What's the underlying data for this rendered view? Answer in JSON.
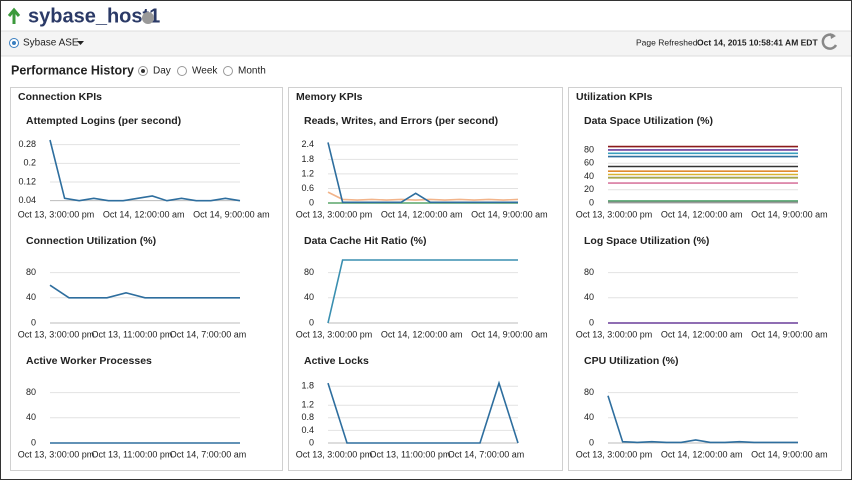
{
  "header": {
    "title": "sybase_host1"
  },
  "toolbar": {
    "target": "Sybase ASE",
    "refreshed_label": "Page Refreshed",
    "refreshed_time": "Oct 14, 2015 10:58:41 AM EDT"
  },
  "performance_history": {
    "title": "Performance History",
    "options": [
      "Day",
      "Week",
      "Month"
    ],
    "selected": 0
  },
  "panels": [
    {
      "title": "Connection KPIs"
    },
    {
      "title": "Memory KPIs"
    },
    {
      "title": "Utilization KPIs"
    }
  ],
  "chart_data": [
    {
      "type": "line",
      "title": "Attempted Logins (per second)",
      "categories": [
        "Oct 13, 3:00:00 pm",
        null,
        null,
        null,
        null,
        null,
        "Oct 14, 12:00:00 am",
        null,
        null,
        null,
        null,
        null,
        "Oct 14, 9:00:00 am",
        null
      ],
      "ylim": [
        0.03,
        0.3
      ],
      "yticks": [
        0.04,
        0.12,
        0.2,
        0.28
      ],
      "grid": true,
      "series": [
        {
          "color": "#2e6e9e",
          "values": [
            0.3,
            0.05,
            0.04,
            0.05,
            0.04,
            0.04,
            0.05,
            0.06,
            0.04,
            0.05,
            0.04,
            0.04,
            0.05,
            0.04
          ]
        }
      ]
    },
    {
      "type": "line",
      "title": "Connection Utilization (%)",
      "categories": [
        "Oct 13, 3:00:00 pm",
        null,
        null,
        null,
        "Oct 13, 11:00:00 pm",
        null,
        null,
        null,
        "Oct 14, 7:00:00 am",
        null,
        null
      ],
      "ylim": [
        0,
        100
      ],
      "yticks": [
        0,
        40,
        80
      ],
      "grid": true,
      "series": [
        {
          "color": "#2e6e9e",
          "values": [
            60,
            40,
            40,
            40,
            48,
            40,
            40,
            40,
            40,
            40,
            40
          ]
        }
      ]
    },
    {
      "type": "line",
      "title": "Active Worker Processes",
      "categories": [
        "Oct 13, 3:00:00 pm",
        null,
        null,
        null,
        "Oct 13, 11:00:00 pm",
        null,
        null,
        null,
        "Oct 14, 7:00:00 am",
        null,
        null
      ],
      "ylim": [
        0,
        100
      ],
      "yticks": [
        0,
        40,
        80
      ],
      "grid": true,
      "series": [
        {
          "color": "#2e6e9e",
          "values": [
            0,
            0,
            0,
            0,
            0,
            0,
            0,
            0,
            0,
            0,
            0
          ]
        }
      ]
    },
    {
      "type": "line",
      "title": "Reads, Writes, and Errors (per second)",
      "categories": [
        "Oct 13, 3:00:00 pm",
        null,
        null,
        null,
        null,
        null,
        "Oct 14, 12:00:00 am",
        null,
        null,
        null,
        null,
        null,
        "Oct 14, 9:00:00 am",
        null
      ],
      "ylim": [
        0,
        2.6
      ],
      "yticks": [
        0,
        0.6,
        1.2,
        1.8,
        2.4
      ],
      "grid": true,
      "series": [
        {
          "color": "#f2b48a",
          "values": [
            0.45,
            0.15,
            0.12,
            0.15,
            0.12,
            0.15,
            0.12,
            0.15,
            0.12,
            0.15,
            0.12,
            0.15,
            0.12,
            0.15
          ]
        },
        {
          "color": "#5aa56a",
          "values": [
            0,
            0,
            0,
            0,
            0,
            0,
            0,
            0,
            0,
            0,
            0,
            0,
            0,
            0
          ]
        },
        {
          "color": "#2e6e9e",
          "values": [
            2.5,
            0.03,
            0.03,
            0.03,
            0.03,
            0.03,
            0.4,
            0.03,
            0.03,
            0.03,
            0.03,
            0.03,
            0.03,
            0.03
          ]
        }
      ]
    },
    {
      "type": "line",
      "title": "Data Cache Hit Ratio (%)",
      "categories": [
        "Oct 13, 3:00:00 pm",
        null,
        null,
        null,
        null,
        null,
        "Oct 14, 12:00:00 am",
        null,
        null,
        null,
        null,
        null,
        "Oct 14, 9:00:00 am",
        null
      ],
      "ylim": [
        0,
        100
      ],
      "yticks": [
        0,
        40,
        80
      ],
      "grid": true,
      "series": [
        {
          "color": "#3a8fb0",
          "values": [
            0,
            100,
            100,
            100,
            100,
            100,
            100,
            100,
            100,
            100,
            100,
            100,
            100,
            100
          ]
        }
      ]
    },
    {
      "type": "line",
      "title": "Active Locks",
      "categories": [
        "Oct 13, 3:00:00 pm",
        null,
        null,
        null,
        "Oct 13, 11:00:00 pm",
        null,
        null,
        null,
        "Oct 14, 7:00:00 am",
        null,
        null
      ],
      "ylim": [
        0,
        2
      ],
      "yticks": [
        0,
        0.4,
        0.8,
        1.2,
        1.8
      ],
      "grid": true,
      "series": [
        {
          "color": "#2e6e9e",
          "values": [
            1.9,
            0,
            0,
            0,
            0,
            0,
            0,
            0,
            0,
            1.9,
            0
          ]
        }
      ]
    },
    {
      "type": "line",
      "title": "Data Space Utilization (%)",
      "categories": [
        "Oct 13, 3:00:00 pm",
        null,
        null,
        null,
        null,
        null,
        "Oct 14, 12:00:00 am",
        null,
        null,
        null,
        null,
        null,
        "Oct 14, 9:00:00 am",
        null
      ],
      "ylim": [
        0,
        95
      ],
      "yticks": [
        0,
        20,
        40,
        60,
        80
      ],
      "grid": true,
      "series": [
        {
          "color": "#8b1a1a",
          "values": [
            85,
            85,
            85,
            85,
            85,
            85,
            85,
            85,
            85,
            85,
            85,
            85,
            85,
            85
          ]
        },
        {
          "color": "#6a3d9a",
          "values": [
            80,
            80,
            80,
            80,
            80,
            80,
            80,
            80,
            80,
            80,
            80,
            80,
            80,
            80
          ]
        },
        {
          "color": "#3a9fbf",
          "values": [
            75,
            75,
            75,
            75,
            75,
            75,
            75,
            75,
            75,
            75,
            75,
            75,
            75,
            75
          ]
        },
        {
          "color": "#2e6e9e",
          "values": [
            70,
            70,
            70,
            70,
            70,
            70,
            70,
            70,
            70,
            70,
            70,
            70,
            70,
            70
          ]
        },
        {
          "color": "#333333",
          "values": [
            55,
            55,
            55,
            55,
            55,
            55,
            55,
            55,
            55,
            55,
            55,
            55,
            55,
            55
          ]
        },
        {
          "color": "#e08a2e",
          "values": [
            48,
            48,
            48,
            48,
            48,
            48,
            48,
            48,
            48,
            48,
            48,
            48,
            48,
            48
          ]
        },
        {
          "color": "#d9b233",
          "values": [
            43,
            43,
            43,
            43,
            43,
            43,
            43,
            43,
            43,
            43,
            43,
            43,
            43,
            43
          ]
        },
        {
          "color": "#a8a84a",
          "values": [
            38,
            38,
            38,
            38,
            38,
            38,
            38,
            38,
            38,
            38,
            38,
            38,
            38,
            38
          ]
        },
        {
          "color": "#d87aa0",
          "values": [
            30,
            30,
            30,
            30,
            30,
            30,
            30,
            30,
            30,
            30,
            30,
            30,
            30,
            30
          ]
        },
        {
          "color": "#3a9a5a",
          "values": [
            3,
            3,
            3,
            3,
            3,
            3,
            3,
            3,
            3,
            3,
            3,
            3,
            3,
            3
          ]
        },
        {
          "color": "#999999",
          "values": [
            1,
            1,
            1,
            1,
            1,
            1,
            1,
            1,
            1,
            1,
            1,
            1,
            1,
            1
          ]
        }
      ]
    },
    {
      "type": "line",
      "title": "Log Space Utilization (%)",
      "categories": [
        "Oct 13, 3:00:00 pm",
        null,
        null,
        null,
        null,
        null,
        "Oct 14, 12:00:00 am",
        null,
        null,
        null,
        null,
        null,
        "Oct 14, 9:00:00 am",
        null
      ],
      "ylim": [
        0,
        100
      ],
      "yticks": [
        0,
        40,
        80
      ],
      "grid": true,
      "series": [
        {
          "color": "#6a3d9a",
          "values": [
            0,
            0,
            0,
            0,
            0,
            0,
            0,
            0,
            0,
            0,
            0,
            0,
            0,
            0
          ]
        }
      ]
    },
    {
      "type": "line",
      "title": "CPU Utilization (%)",
      "categories": [
        "Oct 13, 3:00:00 pm",
        null,
        null,
        null,
        null,
        null,
        "Oct 14, 12:00:00 am",
        null,
        null,
        null,
        null,
        null,
        "Oct 14, 9:00:00 am",
        null
      ],
      "ylim": [
        0,
        100
      ],
      "yticks": [
        0,
        40,
        80
      ],
      "grid": true,
      "series": [
        {
          "color": "#2e6e9e",
          "values": [
            75,
            2,
            1,
            2,
            1,
            1,
            5,
            1,
            1,
            2,
            1,
            1,
            1,
            1
          ]
        }
      ]
    }
  ]
}
